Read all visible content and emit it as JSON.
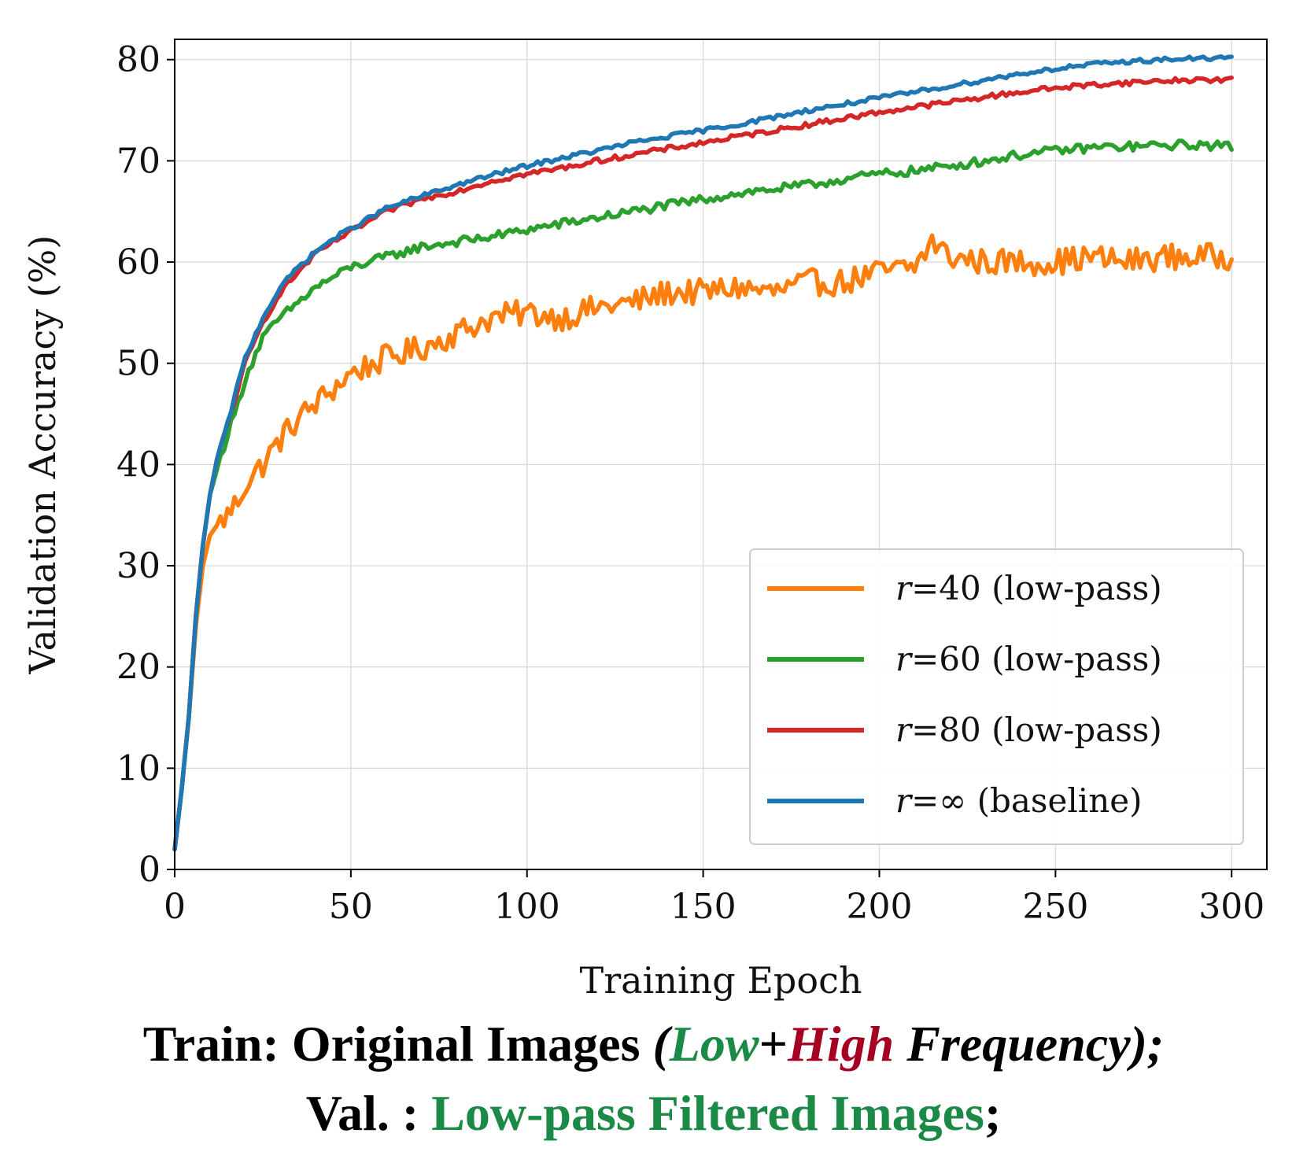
{
  "chart_data": {
    "type": "line",
    "xlabel": "Training Epoch",
    "ylabel": "Validation Accuracy (%)",
    "xlim": [
      0,
      310
    ],
    "ylim": [
      0,
      82
    ],
    "xticks": [
      0,
      50,
      100,
      150,
      200,
      250,
      300
    ],
    "yticks": [
      0,
      10,
      20,
      30,
      40,
      50,
      60,
      70,
      80
    ],
    "grid": true,
    "legend_position": "lower-right",
    "legend_var": "r",
    "series": [
      {
        "name": "r=40 (low-pass)",
        "legend_value": "40",
        "legend_suffix": " (low-pass)",
        "color": "#ff7f0e",
        "x": [
          0,
          2,
          4,
          6,
          8,
          10,
          12,
          15,
          18,
          20,
          25,
          30,
          35,
          40,
          45,
          50,
          60,
          70,
          80,
          90,
          100,
          110,
          120,
          130,
          140,
          150,
          160,
          170,
          180,
          190,
          200,
          210,
          215,
          220,
          230,
          240,
          250,
          260,
          270,
          280,
          290,
          300
        ],
        "values": [
          2,
          8,
          15,
          24,
          30,
          33,
          34,
          35,
          36.5,
          38,
          40,
          42.5,
          44.5,
          46,
          47.5,
          49,
          50.5,
          51.5,
          53,
          54.5,
          55,
          54.5,
          55.5,
          56,
          57,
          57,
          57.5,
          57,
          58,
          58,
          59,
          59.5,
          62,
          60.5,
          60,
          60,
          60,
          60.5,
          60,
          60.5,
          60.5,
          60.5
        ],
        "noise": 1.3
      },
      {
        "name": "r=60 (low-pass)",
        "legend_value": "60",
        "legend_suffix": " (low-pass)",
        "color": "#2ca02c",
        "x": [
          0,
          2,
          4,
          6,
          8,
          10,
          12,
          15,
          18,
          20,
          25,
          30,
          35,
          40,
          45,
          50,
          60,
          70,
          80,
          90,
          100,
          110,
          120,
          130,
          140,
          150,
          160,
          170,
          180,
          190,
          200,
          210,
          220,
          230,
          240,
          250,
          260,
          270,
          280,
          290,
          300
        ],
        "values": [
          2,
          8,
          15,
          25,
          32,
          37,
          39.5,
          43,
          46,
          48.5,
          52.5,
          54.5,
          56,
          57.5,
          58.5,
          59.5,
          60.5,
          61.5,
          62,
          62.5,
          63.2,
          63.8,
          64.4,
          65,
          65.6,
          66.2,
          66.8,
          67.2,
          67.6,
          68.2,
          68.7,
          69,
          69.5,
          70,
          70.6,
          71,
          71.3,
          71.4,
          71.5,
          71.6,
          71.4
        ],
        "noise": 0.45
      },
      {
        "name": "r=80 (low-pass)",
        "legend_value": "80",
        "legend_suffix": " (low-pass)",
        "color": "#d62728",
        "x": [
          0,
          2,
          4,
          6,
          8,
          10,
          12,
          15,
          18,
          20,
          25,
          30,
          35,
          40,
          45,
          50,
          60,
          70,
          80,
          90,
          100,
          110,
          120,
          130,
          140,
          150,
          160,
          170,
          180,
          190,
          200,
          210,
          220,
          230,
          240,
          250,
          260,
          270,
          280,
          290,
          300
        ],
        "values": [
          2,
          8,
          15,
          25,
          32,
          37,
          40.5,
          44,
          47.5,
          50,
          54,
          57,
          59,
          60.8,
          62,
          63,
          65,
          66.2,
          67,
          68,
          68.7,
          69.3,
          70,
          70.6,
          71.2,
          71.8,
          72.4,
          73,
          73.6,
          74.2,
          74.8,
          75.3,
          75.8,
          76.3,
          76.8,
          77.2,
          77.5,
          77.7,
          77.9,
          78,
          78
        ],
        "noise": 0.25
      },
      {
        "name": "r=∞ (baseline)",
        "legend_value": "∞",
        "legend_suffix": " (baseline)",
        "color": "#1f77b4",
        "x": [
          0,
          2,
          4,
          6,
          8,
          10,
          12,
          15,
          18,
          20,
          25,
          30,
          35,
          40,
          45,
          50,
          60,
          70,
          80,
          90,
          100,
          110,
          120,
          130,
          140,
          150,
          160,
          170,
          180,
          190,
          200,
          210,
          220,
          230,
          240,
          250,
          260,
          270,
          280,
          290,
          300
        ],
        "values": [
          2,
          8,
          15,
          25,
          32,
          37,
          40.5,
          44,
          48,
          50.5,
          54.5,
          57.5,
          59.5,
          61,
          62.3,
          63.3,
          65.3,
          66.5,
          67.6,
          68.6,
          69.5,
          70.3,
          71,
          71.8,
          72.4,
          73,
          73.6,
          74.3,
          75,
          75.6,
          76.2,
          76.8,
          77.4,
          78,
          78.6,
          79.1,
          79.5,
          79.8,
          80,
          80.1,
          80.2
        ],
        "noise": 0.22
      }
    ]
  },
  "caption": {
    "line1_prefix": "Train: Original Images ",
    "line1_open": "(",
    "line1_low": "Low",
    "line1_plus": "+",
    "line1_high": "High",
    "line1_suffix": " Frequency);",
    "line2_prefix": "Val. : ",
    "line2_green": "Low-pass Filtered Images",
    "line2_suffix": ";"
  },
  "colors": {
    "low_green": "#1b8a46",
    "high_red": "#a50021"
  }
}
